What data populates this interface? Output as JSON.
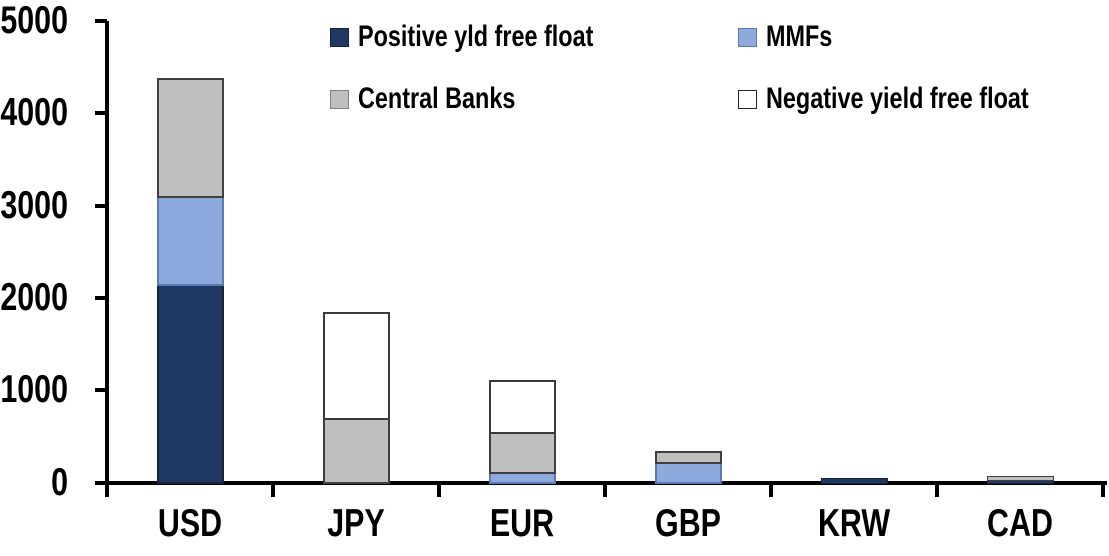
{
  "chart_data": {
    "type": "bar",
    "stacked": true,
    "title": "",
    "xlabel": "",
    "ylabel": "",
    "categories": [
      "USD",
      "JPY",
      "EUR",
      "GBP",
      "KRW",
      "CAD"
    ],
    "series": [
      {
        "name": "Positive yld free float",
        "color": "#1F3864",
        "border_color": "#16233C",
        "swatch_border": "#16233C",
        "values": [
          2150,
          0,
          0,
          0,
          50,
          35
        ]
      },
      {
        "name": "MMFs",
        "color": "#8EA9DB",
        "border_color": "#5B79B2",
        "swatch_border": "#5B79B2",
        "values": [
          950,
          0,
          110,
          220,
          0,
          0
        ]
      },
      {
        "name": "Central Banks",
        "color": "#BFBFBF",
        "border_color": "#3F3F3F",
        "swatch_border": "#808080",
        "values": [
          1280,
          700,
          440,
          120,
          0,
          40
        ]
      },
      {
        "name": "Negative yield free float",
        "color": "#FFFFFF",
        "border_color": "#3A3A3A",
        "swatch_border": "#262626",
        "values": [
          0,
          1150,
          560,
          0,
          0,
          0
        ]
      }
    ],
    "totals": [
      4380,
      1850,
      1110,
      340,
      50,
      75
    ],
    "ylim": [
      0,
      5000
    ],
    "yticks": [
      "0",
      "1000",
      "2000",
      "3000",
      "4000",
      "5000"
    ],
    "grid": false,
    "legend_position": "top-two-rows"
  },
  "colors": {
    "axis": "#000000",
    "text": "#000000",
    "background": "#FFFFFF"
  }
}
